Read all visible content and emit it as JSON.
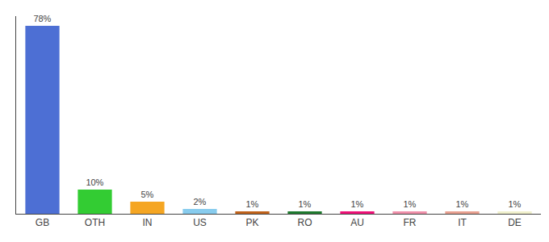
{
  "chart_data": {
    "type": "bar",
    "categories": [
      "GB",
      "OTH",
      "IN",
      "US",
      "PK",
      "RO",
      "AU",
      "FR",
      "IT",
      "DE"
    ],
    "values": [
      78,
      10,
      5,
      2,
      1,
      1,
      1,
      1,
      1,
      1
    ],
    "value_labels": [
      "78%",
      "10%",
      "5%",
      "2%",
      "1%",
      "1%",
      "1%",
      "1%",
      "1%",
      "1%"
    ],
    "colors": [
      "#4d6fd4",
      "#33cc33",
      "#f5a623",
      "#88ccee",
      "#c0621a",
      "#1e7a2e",
      "#ee1177",
      "#f090aa",
      "#e8a090",
      "#f0f0cc"
    ],
    "ylim": [
      0,
      82
    ],
    "grid": false,
    "data_labels": true,
    "tick_labels": "x"
  }
}
